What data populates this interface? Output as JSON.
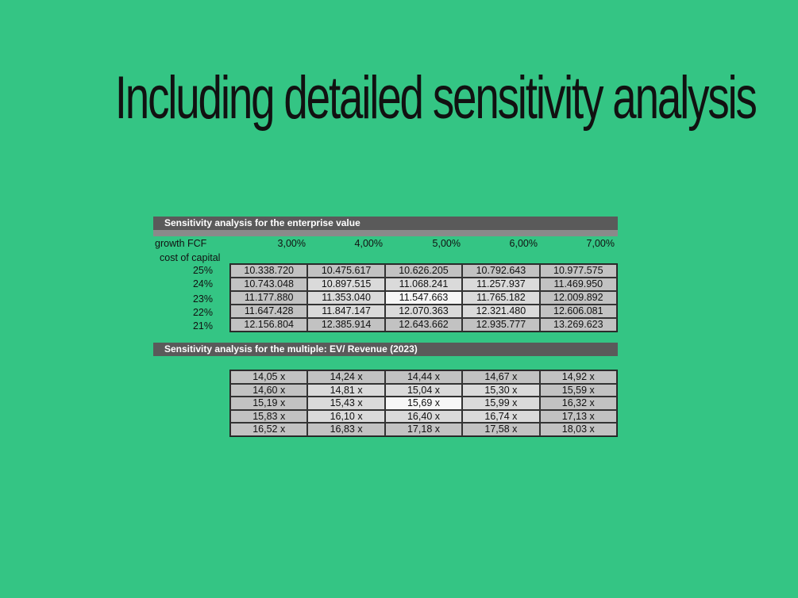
{
  "title": "Including detailed sensitivity analysis",
  "ev_table": {
    "header": "Sensitivity analysis for the enterprise value",
    "row_axis_label": "growth FCF",
    "col_axis_label": "cost of capital",
    "growth_rates": [
      "3,00%",
      "4,00%",
      "5,00%",
      "6,00%",
      "7,00%"
    ],
    "cost_of_capital": [
      "25%",
      "24%",
      "23%",
      "22%",
      "21%"
    ],
    "rows": [
      [
        "10.338.720",
        "10.475.617",
        "10.626.205",
        "10.792.643",
        "10.977.575"
      ],
      [
        "10.743.048",
        "10.897.515",
        "11.068.241",
        "11.257.937",
        "11.469.950"
      ],
      [
        "11.177.880",
        "11.353.040",
        "11.547.663",
        "11.765.182",
        "12.009.892"
      ],
      [
        "11.647.428",
        "11.847.147",
        "12.070.363",
        "12.321.480",
        "12.606.081"
      ],
      [
        "12.156.804",
        "12.385.914",
        "12.643.662",
        "12.935.777",
        "13.269.623"
      ]
    ]
  },
  "multiple_table": {
    "header": "Sensitivity analysis for the multiple: EV/ Revenue (2023)",
    "rows": [
      [
        "14,05 x",
        "14,24 x",
        "14,44 x",
        "14,67 x",
        "14,92 x"
      ],
      [
        "14,60 x",
        "14,81 x",
        "15,04 x",
        "15,30 x",
        "15,59 x"
      ],
      [
        "15,19 x",
        "15,43 x",
        "15,69 x",
        "15,99 x",
        "16,32 x"
      ],
      [
        "15,83 x",
        "16,10 x",
        "16,40 x",
        "16,74 x",
        "17,13 x"
      ],
      [
        "16,52 x",
        "16,83 x",
        "17,18 x",
        "17,58 x",
        "18,03 x"
      ]
    ]
  },
  "colors": {
    "background": "#34c584",
    "header": "#5a5a5a",
    "cell_dark": "#c2c2c2",
    "cell_light": "#dadada",
    "cell_center": "#f6f6f6"
  }
}
